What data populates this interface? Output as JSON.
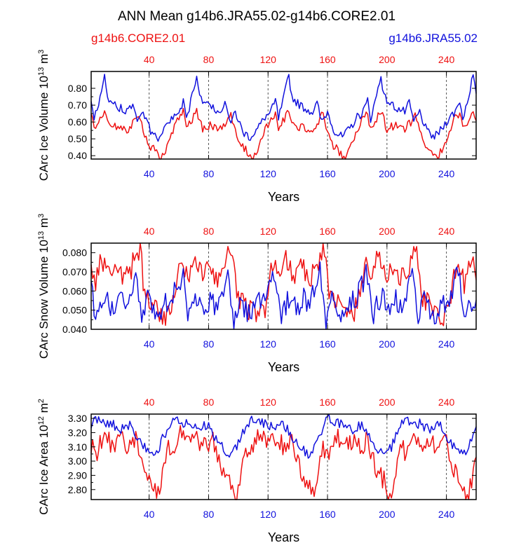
{
  "title": "ANN Mean g14b6.JRA55.02-g14b6.CORE2.01",
  "legend": {
    "left_label": "g14b6.CORE2.01",
    "right_label": "g14b6.JRA55.02",
    "left_color": "#ee1111",
    "right_color": "#1111dd"
  },
  "chart_data": [
    {
      "type": "line",
      "ylabel": "CArc Ice Volume 10",
      "ylabel_exp": "13",
      "ylabel_unit": "m",
      "ylabel_unit_exp": "3",
      "xlabel": "Years",
      "xlim": [
        1,
        260
      ],
      "ylim": [
        0.38,
        0.9
      ],
      "yticks": [
        0.4,
        0.5,
        0.6,
        0.7,
        0.8
      ],
      "ytick_labels": [
        "0.40",
        "0.50",
        "0.60",
        "0.70",
        "0.80"
      ],
      "xticks": [
        40,
        80,
        120,
        160,
        200,
        240
      ],
      "xtick_labels": [
        "40",
        "80",
        "120",
        "160",
        "200",
        "240"
      ],
      "top_xtick_labels": [
        "40",
        "80",
        "120",
        "160",
        "200",
        "240"
      ],
      "cycle_years": 62,
      "series": [
        {
          "name": "g14b6.CORE2.01",
          "color": "#ee1111",
          "cycle_keypoints": [
            [
              0,
              0.66
            ],
            [
              2,
              0.55
            ],
            [
              5,
              0.6
            ],
            [
              9,
              0.66
            ],
            [
              13,
              0.56
            ],
            [
              18,
              0.58
            ],
            [
              24,
              0.55
            ],
            [
              29,
              0.6
            ],
            [
              32,
              0.65
            ],
            [
              35,
              0.54
            ],
            [
              38,
              0.47
            ],
            [
              42,
              0.44
            ],
            [
              46,
              0.38
            ],
            [
              50,
              0.43
            ],
            [
              55,
              0.55
            ],
            [
              58,
              0.61
            ],
            [
              61,
              0.64
            ]
          ],
          "noise_amplitude": 0.025
        },
        {
          "name": "g14b6.JRA55.02",
          "color": "#1111dd",
          "cycle_keypoints": [
            [
              0,
              0.73
            ],
            [
              2,
              0.62
            ],
            [
              5,
              0.72
            ],
            [
              9,
              0.88
            ],
            [
              11,
              0.75
            ],
            [
              15,
              0.71
            ],
            [
              20,
              0.68
            ],
            [
              25,
              0.66
            ],
            [
              28,
              0.71
            ],
            [
              31,
              0.6
            ],
            [
              35,
              0.66
            ],
            [
              40,
              0.54
            ],
            [
              45,
              0.51
            ],
            [
              50,
              0.56
            ],
            [
              55,
              0.63
            ],
            [
              58,
              0.65
            ],
            [
              61,
              0.7
            ]
          ],
          "noise_amplitude": 0.025
        }
      ]
    },
    {
      "type": "line",
      "ylabel": "CArc Snow Volume 10",
      "ylabel_exp": "13",
      "ylabel_unit": "m",
      "ylabel_unit_exp": "3",
      "xlabel": "Years",
      "xlim": [
        1,
        260
      ],
      "ylim": [
        0.04,
        0.085
      ],
      "yticks": [
        0.04,
        0.05,
        0.06,
        0.07,
        0.08
      ],
      "ytick_labels": [
        "0.040",
        "0.050",
        "0.060",
        "0.070",
        "0.080"
      ],
      "xticks": [
        40,
        80,
        120,
        160,
        200,
        240
      ],
      "xtick_labels": [
        "40",
        "80",
        "120",
        "160",
        "200",
        "240"
      ],
      "top_xtick_labels": [
        "40",
        "80",
        "120",
        "160",
        "200",
        "240"
      ],
      "cycle_years": 62,
      "series": [
        {
          "name": "g14b6.CORE2.01",
          "color": "#ee1111",
          "cycle_keypoints": [
            [
              0,
              0.075
            ],
            [
              3,
              0.064
            ],
            [
              6,
              0.078
            ],
            [
              10,
              0.072
            ],
            [
              14,
              0.068
            ],
            [
              18,
              0.074
            ],
            [
              22,
              0.066
            ],
            [
              26,
              0.07
            ],
            [
              30,
              0.078
            ],
            [
              33,
              0.084
            ],
            [
              36,
              0.056
            ],
            [
              40,
              0.055
            ],
            [
              45,
              0.05
            ],
            [
              50,
              0.046
            ],
            [
              55,
              0.052
            ],
            [
              58,
              0.066
            ],
            [
              61,
              0.074
            ]
          ],
          "noise_amplitude": 0.006
        },
        {
          "name": "g14b6.JRA55.02",
          "color": "#1111dd",
          "cycle_keypoints": [
            [
              0,
              0.066
            ],
            [
              3,
              0.046
            ],
            [
              6,
              0.052
            ],
            [
              10,
              0.056
            ],
            [
              14,
              0.05
            ],
            [
              18,
              0.057
            ],
            [
              22,
              0.052
            ],
            [
              26,
              0.06
            ],
            [
              30,
              0.07
            ],
            [
              34,
              0.044
            ],
            [
              38,
              0.055
            ],
            [
              42,
              0.05
            ],
            [
              46,
              0.048
            ],
            [
              50,
              0.053
            ],
            [
              55,
              0.056
            ],
            [
              58,
              0.064
            ],
            [
              61,
              0.068
            ]
          ],
          "noise_amplitude": 0.006
        }
      ]
    },
    {
      "type": "line",
      "ylabel": "CArc Ice Area 10",
      "ylabel_exp": "12",
      "ylabel_unit": "m",
      "ylabel_unit_exp": "2",
      "xlabel": "Years",
      "xlim": [
        1,
        260
      ],
      "ylim": [
        2.73,
        3.33
      ],
      "yticks": [
        2.8,
        2.9,
        3.0,
        3.1,
        3.2,
        3.3
      ],
      "ytick_labels": [
        "2.80",
        "2.90",
        "3.00",
        "3.10",
        "3.20",
        "3.30"
      ],
      "xticks": [
        40,
        80,
        120,
        160,
        200,
        240
      ],
      "xtick_labels": [
        "40",
        "80",
        "120",
        "160",
        "200",
        "240"
      ],
      "top_xtick_labels": [
        "40",
        "80",
        "120",
        "160",
        "200",
        "240"
      ],
      "cycle_years": 52,
      "series": [
        {
          "name": "g14b6.CORE2.01",
          "color": "#ee1111",
          "cycle_keypoints": [
            [
              0,
              3.1
            ],
            [
              4,
              3.05
            ],
            [
              8,
              3.18
            ],
            [
              14,
              3.12
            ],
            [
              20,
              3.15
            ],
            [
              26,
              3.1
            ],
            [
              30,
              3.16
            ],
            [
              34,
              3.0
            ],
            [
              38,
              2.9
            ],
            [
              42,
              2.85
            ],
            [
              46,
              2.74
            ],
            [
              49,
              2.95
            ],
            [
              51,
              3.05
            ]
          ],
          "noise_amplitude": 0.07
        },
        {
          "name": "g14b6.JRA55.02",
          "color": "#1111dd",
          "cycle_keypoints": [
            [
              0,
              3.25
            ],
            [
              4,
              3.3
            ],
            [
              8,
              3.27
            ],
            [
              14,
              3.26
            ],
            [
              20,
              3.22
            ],
            [
              26,
              3.26
            ],
            [
              30,
              3.18
            ],
            [
              34,
              3.12
            ],
            [
              38,
              3.08
            ],
            [
              42,
              3.05
            ],
            [
              46,
              3.1
            ],
            [
              49,
              3.18
            ],
            [
              51,
              3.22
            ]
          ],
          "noise_amplitude": 0.035
        }
      ]
    }
  ]
}
